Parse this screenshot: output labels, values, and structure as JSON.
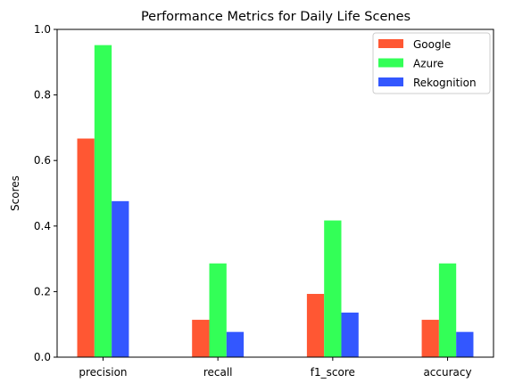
{
  "chart_data": {
    "type": "bar",
    "title": "Performance Metrics for Daily Life Scenes",
    "xlabel": "",
    "ylabel": "Scores",
    "categories": [
      "precision",
      "recall",
      "f1_score",
      "accuracy"
    ],
    "series": [
      {
        "name": "Google",
        "color": "#ff5733",
        "values": [
          0.667,
          0.114,
          0.193,
          0.114
        ]
      },
      {
        "name": "Azure",
        "color": "#33ff57",
        "values": [
          0.952,
          0.286,
          0.417,
          0.286
        ]
      },
      {
        "name": "Rekognition",
        "color": "#3357ff",
        "values": [
          0.476,
          0.077,
          0.136,
          0.077
        ]
      }
    ],
    "ylim": [
      0,
      1.0
    ],
    "yticks": [
      0.0,
      0.2,
      0.4,
      0.6,
      0.8,
      1.0
    ],
    "ytick_labels": [
      "0.0",
      "0.2",
      "0.4",
      "0.6",
      "0.8",
      "1.0"
    ],
    "grid": false,
    "legend_position": "top-right"
  }
}
